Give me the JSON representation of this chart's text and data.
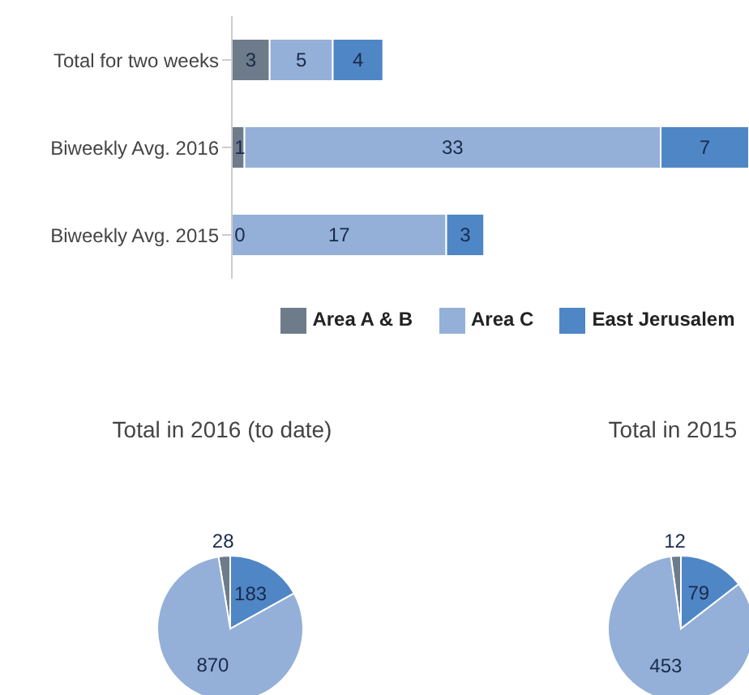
{
  "chart_data": [
    {
      "type": "bar",
      "orientation": "horizontal",
      "stacked": true,
      "categories": [
        "Total for two weeks",
        "Biweekly Avg. 2016",
        "Biweekly Avg. 2015"
      ],
      "series": [
        {
          "name": "Area A & B",
          "color": "#6e7b8b",
          "values": [
            3,
            1,
            0
          ],
          "value_labels": [
            "3",
            "1",
            "0"
          ]
        },
        {
          "name": "Area C",
          "color": "#94b0d8",
          "values": [
            5,
            33,
            17
          ],
          "value_labels": [
            "5",
            "33",
            "17"
          ]
        },
        {
          "name": "East Jerusalem",
          "color": "#4f86c6",
          "values": [
            4,
            7,
            3
          ],
          "value_labels": [
            "4",
            "7",
            "3"
          ]
        }
      ],
      "xlim": [
        0,
        41
      ],
      "tick_labels": "y",
      "legend": "bottom"
    },
    {
      "type": "pie",
      "title": "Total in 2016 (to date)",
      "categories": [
        null,
        null,
        null
      ],
      "values": [
        28,
        870,
        183
      ],
      "colors": [
        "#6e7b8b",
        "#94b0d8",
        "#4f86c6"
      ],
      "data_labels": true
    },
    {
      "type": "pie",
      "title": "Total in 2015",
      "categories": [
        null,
        null,
        null
      ],
      "values": [
        12,
        453,
        79
      ],
      "colors": [
        "#6e7b8b",
        "#94b0d8",
        "#4f86c6"
      ],
      "data_labels": true
    }
  ]
}
